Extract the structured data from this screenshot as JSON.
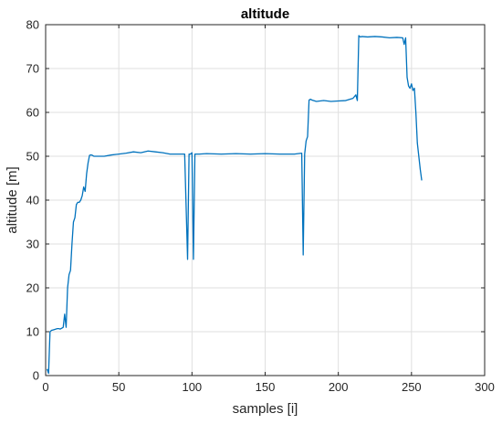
{
  "chart_data": {
    "type": "line",
    "title": "altitude",
    "xlabel": "samples [i]",
    "ylabel": "altitude [m]",
    "xlim": [
      0,
      300
    ],
    "ylim": [
      0,
      80
    ],
    "xticks": [
      0,
      50,
      100,
      150,
      200,
      250,
      300
    ],
    "yticks": [
      0,
      10,
      20,
      30,
      40,
      50,
      60,
      70,
      80
    ],
    "grid": true,
    "color": "#0072bd",
    "series": [
      {
        "x": [
          1,
          2,
          3,
          4,
          5,
          6,
          7,
          8,
          9,
          10,
          11,
          12,
          13,
          14,
          15,
          16,
          17,
          18,
          19,
          20,
          21,
          22,
          23,
          24,
          25,
          26,
          27,
          28,
          29,
          30,
          31,
          32,
          33,
          34,
          35,
          40,
          45,
          50,
          55,
          60,
          65,
          70,
          75,
          80,
          85,
          90,
          95,
          97,
          98,
          99,
          100,
          101,
          102,
          103,
          104,
          105,
          110,
          120,
          130,
          140,
          150,
          160,
          170,
          175,
          176,
          177,
          178,
          179,
          180,
          181,
          182,
          183,
          185,
          190,
          195,
          200,
          205,
          210,
          212,
          213,
          214,
          215,
          216,
          220,
          225,
          230,
          235,
          240,
          244,
          245,
          246,
          247,
          248,
          249,
          250,
          251,
          252,
          253,
          254,
          255,
          256,
          257
        ],
        "y": [
          1.5,
          0.5,
          10,
          10.3,
          10.4,
          10.5,
          10.6,
          10.7,
          10.7,
          10.6,
          10.8,
          11,
          14,
          11,
          20,
          23,
          24,
          30,
          35,
          36,
          39,
          39.5,
          39.5,
          40,
          41,
          43,
          42,
          46,
          48.5,
          50.2,
          50.3,
          50.2,
          50,
          50,
          50,
          50,
          50.3,
          50.5,
          50.7,
          51,
          50.8,
          51.2,
          51,
          50.8,
          50.5,
          50.5,
          50.5,
          26.5,
          50.5,
          50.5,
          50.8,
          26.5,
          50.5,
          50.5,
          50.5,
          50.5,
          50.6,
          50.5,
          50.6,
          50.5,
          50.6,
          50.5,
          50.5,
          50.7,
          27.5,
          50.5,
          53.5,
          54.5,
          62.8,
          63,
          62.8,
          62.7,
          62.5,
          62.7,
          62.5,
          62.6,
          62.7,
          63.2,
          64,
          62.7,
          77.5,
          77.2,
          77.3,
          77.2,
          77.3,
          77.2,
          77.0,
          77.1,
          77.0,
          75.5,
          77.0,
          68,
          66,
          65.5,
          66.5,
          65,
          65.5,
          60,
          53,
          50,
          47,
          44.5
        ]
      }
    ]
  }
}
